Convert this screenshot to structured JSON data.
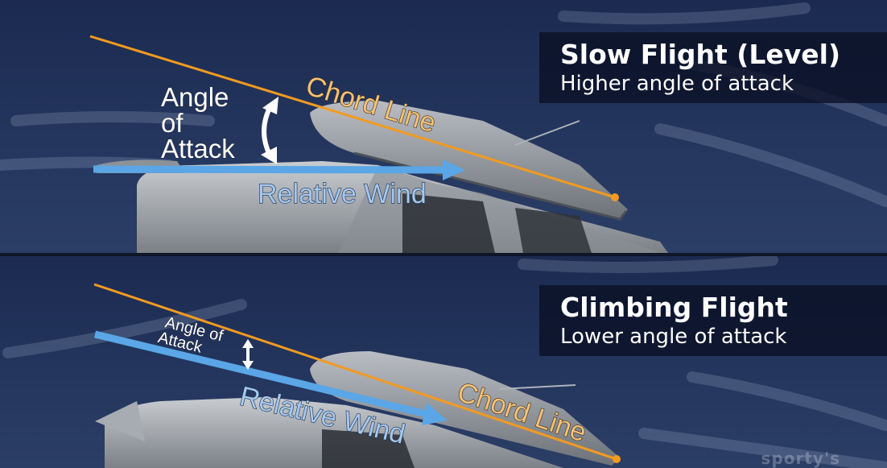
{
  "panels": [
    {
      "title": "Slow Flight (Level)",
      "subtitle": "Higher angle of attack",
      "aoa_label": [
        "Angle",
        "of",
        "Attack"
      ],
      "chord_label": "Chord Line",
      "wind_label": "Relative Wind"
    },
    {
      "title": "Climbing Flight",
      "subtitle": "Lower angle of attack",
      "aoa_label": [
        "Angle of",
        "Attack"
      ],
      "chord_label": "Chord Line",
      "wind_label": "Relative Wind"
    }
  ],
  "watermark": "sporty's",
  "colors": {
    "chord_line": "#f39a1f",
    "relative_wind": "#5aa6e6",
    "background": "#1d2c52",
    "title_box": "#0a1024",
    "airplane": "#9ea3aa"
  }
}
